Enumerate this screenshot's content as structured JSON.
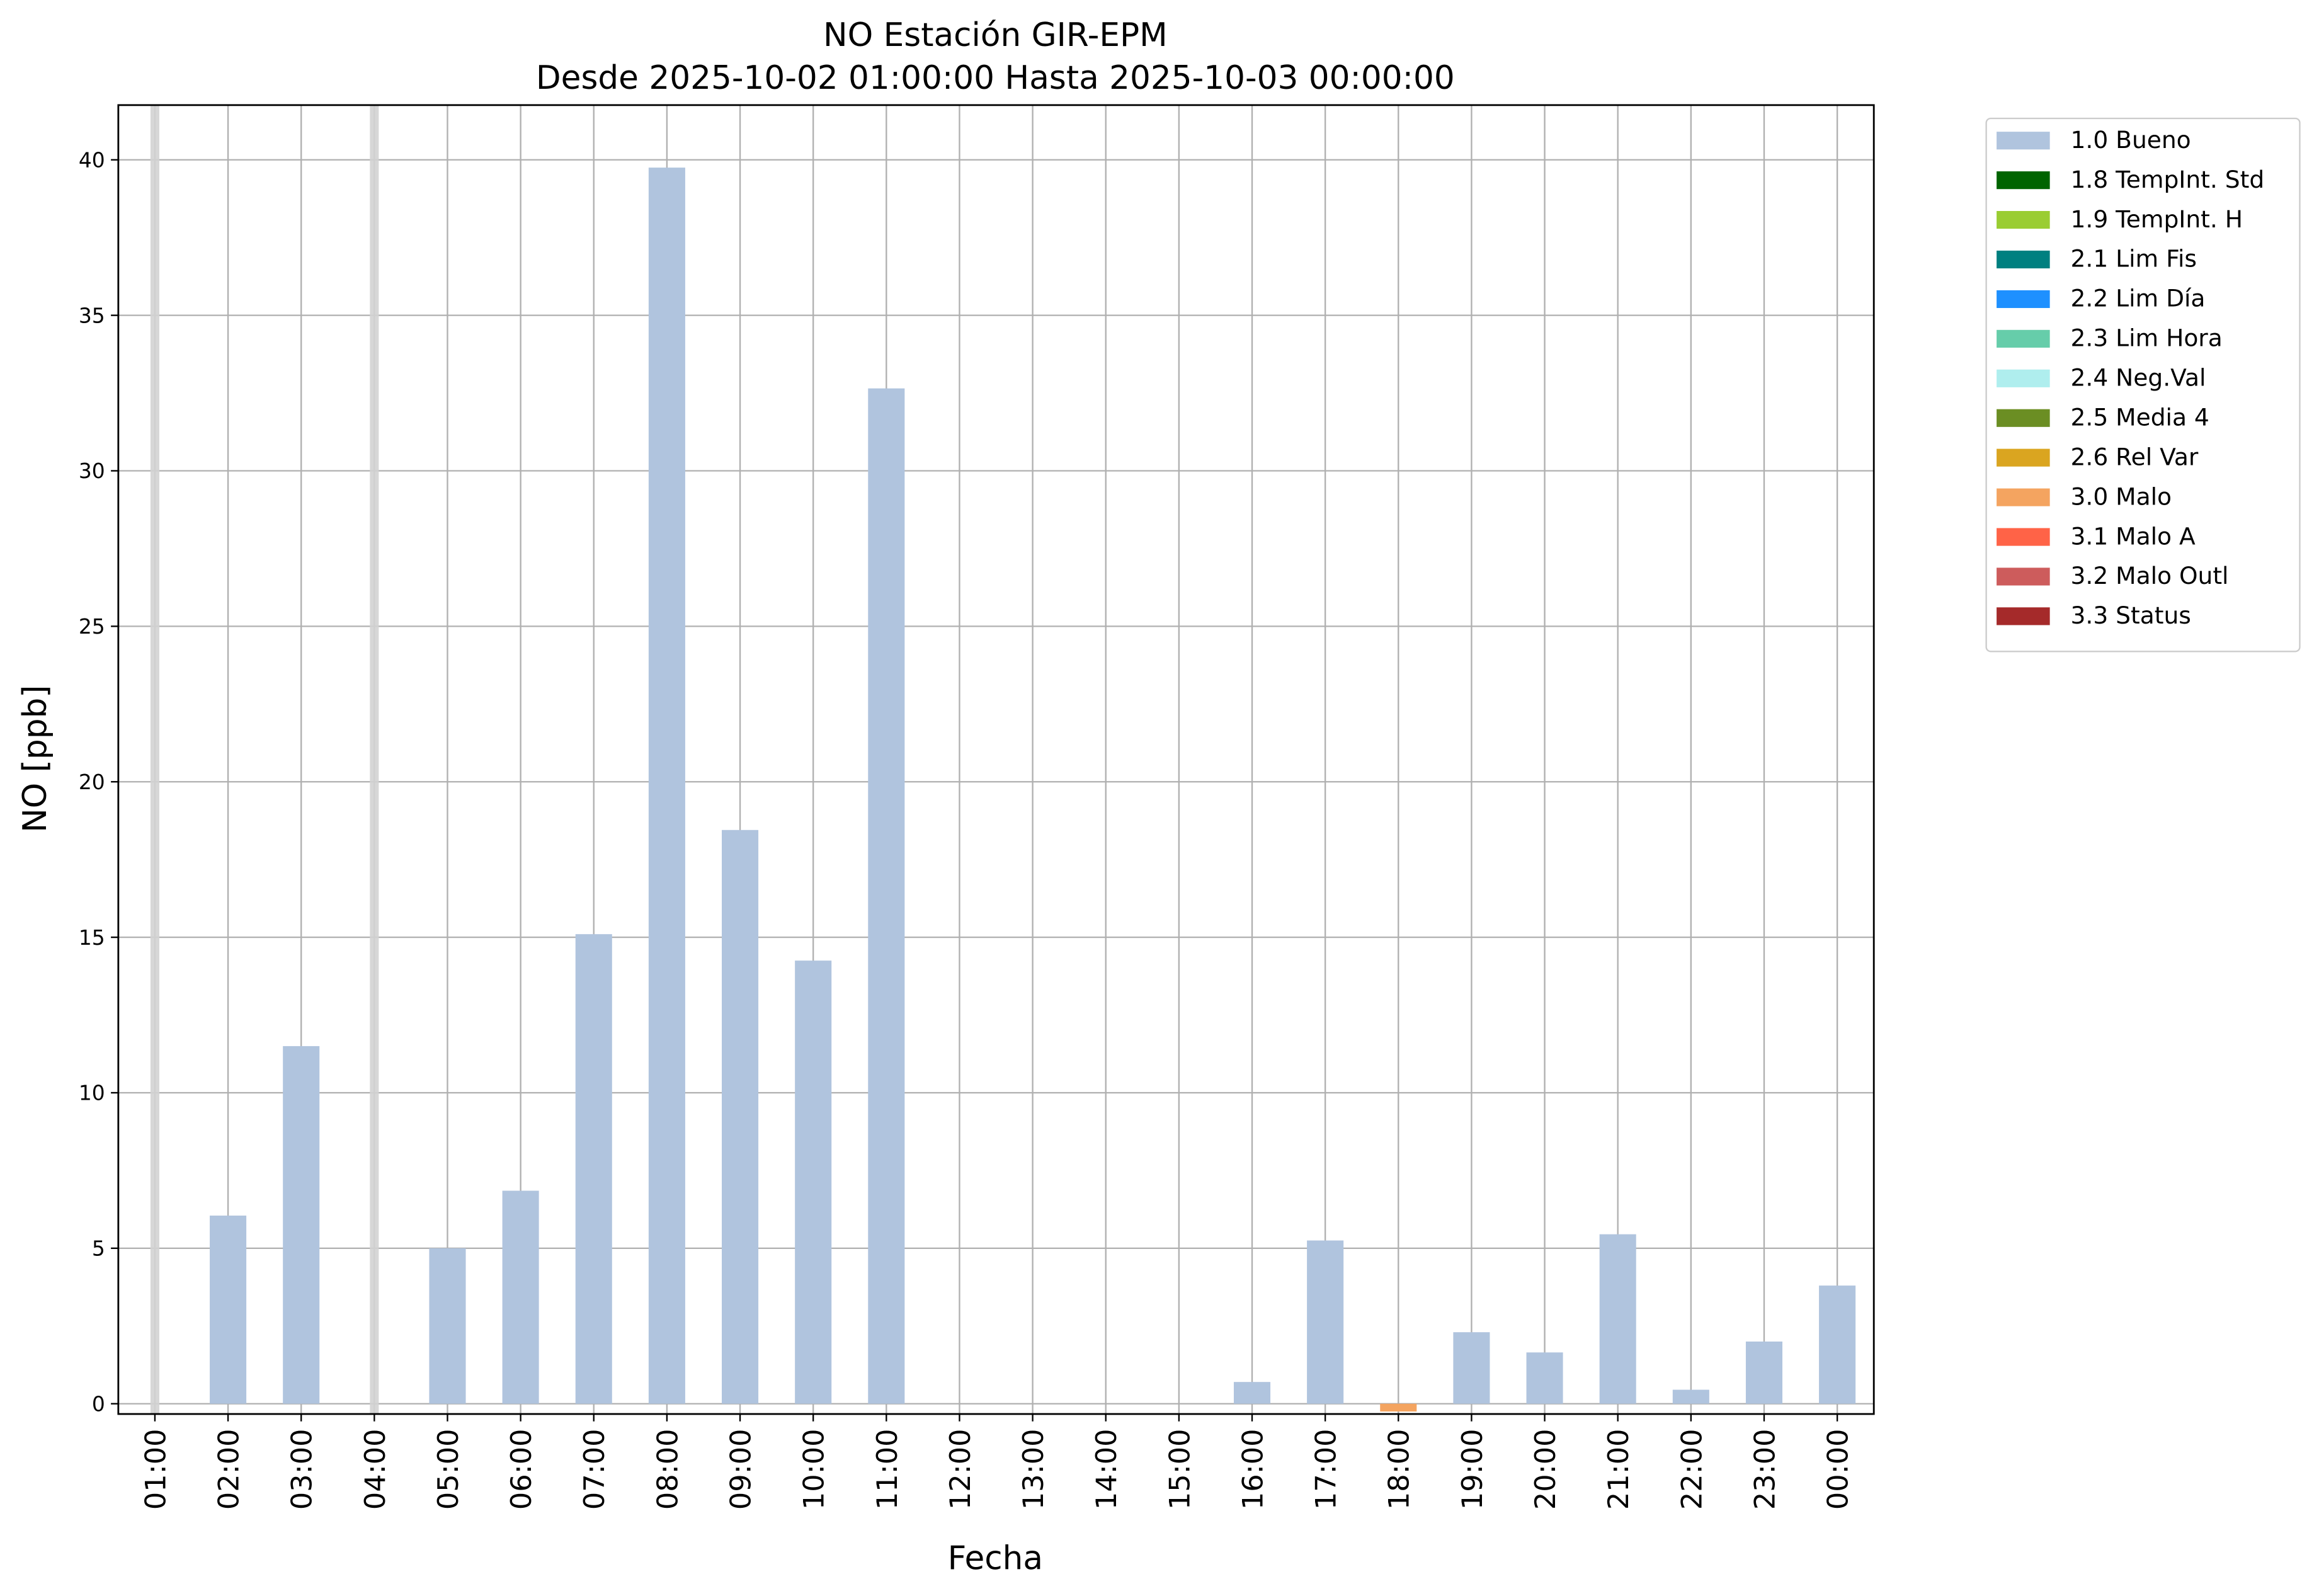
{
  "chart_data": {
    "type": "bar",
    "title": "NO Estación GIR-EPM",
    "subtitle": "Desde 2025-10-02 01:00:00 Hasta 2025-10-03 00:00:00",
    "x_label": "Fecha",
    "y_label": "NO [ppb]",
    "categories": [
      "01:00",
      "02:00",
      "03:00",
      "04:00",
      "05:00",
      "06:00",
      "07:00",
      "08:00",
      "09:00",
      "10:00",
      "11:00",
      "12:00",
      "13:00",
      "14:00",
      "15:00",
      "16:00",
      "17:00",
      "18:00",
      "19:00",
      "20:00",
      "21:00",
      "22:00",
      "23:00",
      "00:00"
    ],
    "highlight_indices": [
      0,
      3
    ],
    "highlight_color": "#d3d3d3",
    "series": [
      {
        "name": "1.0 Bueno",
        "color": "#b0c4de",
        "values": [
          null,
          6.05,
          11.5,
          null,
          5.0,
          6.85,
          15.1,
          39.75,
          18.45,
          14.25,
          32.65,
          null,
          null,
          null,
          null,
          0.7,
          5.25,
          null,
          2.3,
          1.65,
          5.45,
          0.45,
          2.0,
          3.8
        ]
      },
      {
        "name": "1.8 TempInt. Std",
        "color": "#006400",
        "values": [
          null,
          null,
          null,
          null,
          null,
          null,
          null,
          null,
          null,
          null,
          null,
          null,
          null,
          null,
          null,
          null,
          null,
          null,
          null,
          null,
          null,
          null,
          null,
          null
        ]
      },
      {
        "name": "1.9 TempInt. H",
        "color": "#9acd32",
        "values": [
          null,
          null,
          null,
          null,
          null,
          null,
          null,
          null,
          null,
          null,
          null,
          null,
          null,
          null,
          null,
          null,
          null,
          null,
          null,
          null,
          null,
          null,
          null,
          null
        ]
      },
      {
        "name": "2.1 Lim Fis",
        "color": "#008080",
        "values": [
          null,
          null,
          null,
          null,
          null,
          null,
          null,
          null,
          null,
          null,
          null,
          null,
          null,
          null,
          null,
          null,
          null,
          null,
          null,
          null,
          null,
          null,
          null,
          null
        ]
      },
      {
        "name": "2.2 Lim Día",
        "color": "#1e90ff",
        "values": [
          null,
          null,
          null,
          null,
          null,
          null,
          null,
          null,
          null,
          null,
          null,
          null,
          null,
          null,
          null,
          null,
          null,
          null,
          null,
          null,
          null,
          null,
          null,
          null
        ]
      },
      {
        "name": "2.3 Lim Hora",
        "color": "#66cdaa",
        "values": [
          null,
          null,
          null,
          null,
          null,
          null,
          null,
          null,
          null,
          null,
          null,
          null,
          null,
          null,
          null,
          null,
          null,
          null,
          null,
          null,
          null,
          null,
          null,
          null
        ]
      },
      {
        "name": "2.4 Neg.Val",
        "color": "#afeeee",
        "values": [
          null,
          null,
          null,
          null,
          null,
          null,
          null,
          null,
          null,
          null,
          null,
          null,
          null,
          null,
          null,
          null,
          null,
          null,
          null,
          null,
          null,
          null,
          null,
          null
        ]
      },
      {
        "name": "2.5 Media 4",
        "color": "#6b8e23",
        "values": [
          null,
          null,
          null,
          null,
          null,
          null,
          null,
          null,
          null,
          null,
          null,
          null,
          null,
          null,
          null,
          null,
          null,
          null,
          null,
          null,
          null,
          null,
          null,
          null
        ]
      },
      {
        "name": "2.6 Rel Var",
        "color": "#daa520",
        "values": [
          null,
          null,
          null,
          null,
          null,
          null,
          null,
          null,
          null,
          null,
          null,
          null,
          null,
          null,
          null,
          null,
          null,
          null,
          null,
          null,
          null,
          null,
          null,
          null
        ]
      },
      {
        "name": "3.0 Malo",
        "color": "#f4a460",
        "values": [
          null,
          null,
          null,
          null,
          null,
          null,
          null,
          null,
          null,
          null,
          null,
          null,
          null,
          null,
          null,
          null,
          null,
          -0.25,
          null,
          null,
          null,
          null,
          null,
          null
        ]
      },
      {
        "name": "3.1 Malo A",
        "color": "#ff6347",
        "values": [
          null,
          null,
          null,
          null,
          null,
          null,
          null,
          null,
          null,
          null,
          null,
          null,
          null,
          null,
          null,
          null,
          null,
          null,
          null,
          null,
          null,
          null,
          null,
          null
        ]
      },
      {
        "name": "3.2 Malo Outl",
        "color": "#cd5c5c",
        "values": [
          null,
          null,
          null,
          null,
          null,
          null,
          null,
          null,
          null,
          null,
          null,
          null,
          null,
          null,
          null,
          null,
          null,
          null,
          null,
          null,
          null,
          null,
          null,
          null
        ]
      },
      {
        "name": "3.3 Status",
        "color": "#a52a2a",
        "values": [
          null,
          null,
          null,
          null,
          null,
          null,
          null,
          null,
          null,
          null,
          null,
          null,
          null,
          null,
          null,
          null,
          null,
          null,
          null,
          null,
          null,
          null,
          null,
          null
        ]
      }
    ],
    "ylim": [
      -0.33,
      41.76
    ],
    "yticks": [
      0,
      5,
      10,
      15,
      20,
      25,
      30,
      35,
      40
    ],
    "grid": true,
    "legend": "outside-upper-right"
  }
}
